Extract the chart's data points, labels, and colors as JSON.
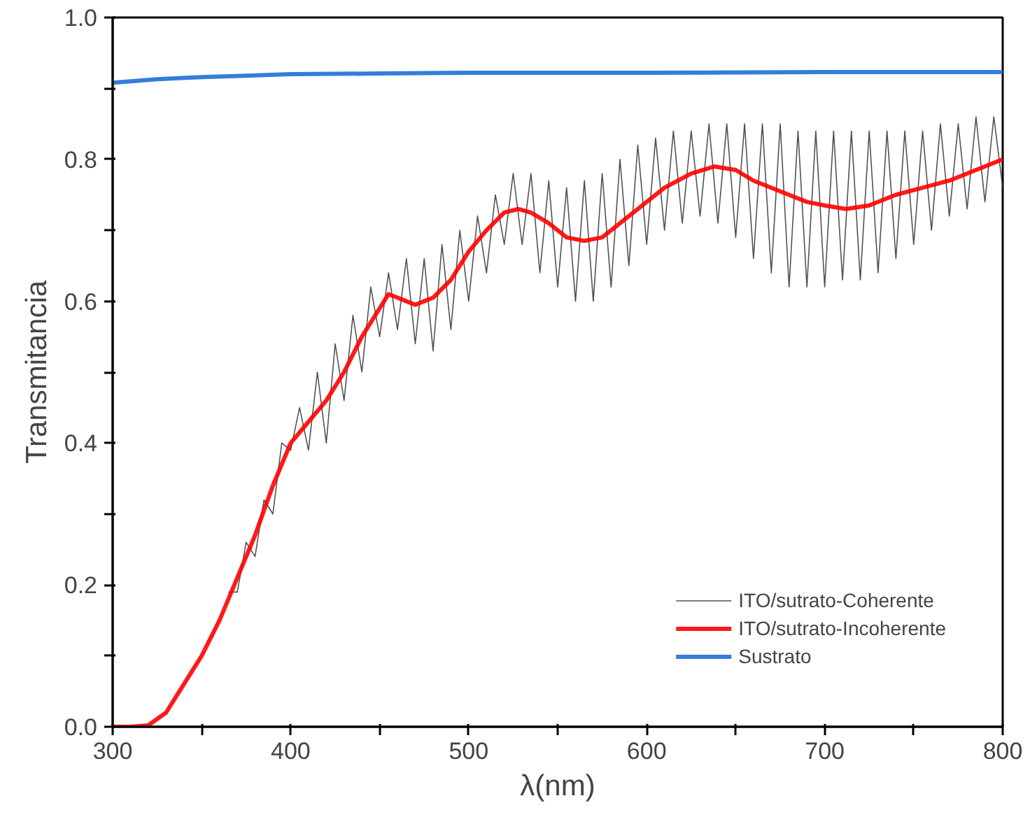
{
  "chart_data": {
    "type": "line",
    "xlabel": "λ(nm)",
    "ylabel": "Transmitancia",
    "xlim": [
      300,
      800
    ],
    "ylim": [
      0,
      1.0
    ],
    "xticks": [
      300,
      {
        "value": 350,
        "label": null
      },
      400,
      {
        "value": 450,
        "label": null
      },
      500,
      {
        "value": 550,
        "label": null
      },
      600,
      {
        "value": 650,
        "label": null
      },
      700,
      {
        "value": 750,
        "label": null
      },
      800
    ],
    "yticks": [
      "0.0",
      {
        "value": 0.1,
        "label": null
      },
      0.2,
      {
        "value": 0.3,
        "label": null
      },
      0.4,
      {
        "value": 0.5,
        "label": null
      },
      0.6,
      {
        "value": 0.7,
        "label": null
      },
      0.8,
      {
        "value": 0.9,
        "label": null
      },
      "1.0"
    ],
    "grid": false,
    "legend": "bottom right",
    "line_style": "solid",
    "marker": "none",
    "series": [
      {
        "name": "ITO/sutrato-Coherente",
        "color": "#404040",
        "x": [
          365,
          370,
          375,
          380,
          385,
          390,
          395,
          400,
          405,
          410,
          415,
          420,
          425,
          430,
          435,
          440,
          445,
          450,
          455,
          460,
          465,
          470,
          475,
          480,
          485,
          490,
          495,
          500,
          505,
          510,
          515,
          520,
          525,
          530,
          535,
          540,
          545,
          550,
          555,
          560,
          565,
          570,
          575,
          580,
          585,
          590,
          595,
          600,
          605,
          610,
          615,
          620,
          625,
          630,
          635,
          640,
          645,
          650,
          655,
          660,
          665,
          670,
          675,
          680,
          685,
          690,
          695,
          700,
          705,
          710,
          715,
          720,
          725,
          730,
          735,
          740,
          745,
          750,
          755,
          760,
          765,
          770,
          775,
          780,
          785,
          790,
          795,
          800
        ],
        "values": [
          0.19,
          0.19,
          0.26,
          0.24,
          0.32,
          0.3,
          0.4,
          0.39,
          0.45,
          0.39,
          0.5,
          0.4,
          0.54,
          0.46,
          0.58,
          0.5,
          0.62,
          0.55,
          0.64,
          0.56,
          0.66,
          0.54,
          0.66,
          0.53,
          0.68,
          0.56,
          0.7,
          0.6,
          0.72,
          0.64,
          0.75,
          0.68,
          0.78,
          0.68,
          0.78,
          0.64,
          0.77,
          0.62,
          0.76,
          0.6,
          0.77,
          0.6,
          0.78,
          0.62,
          0.8,
          0.65,
          0.82,
          0.68,
          0.83,
          0.7,
          0.84,
          0.71,
          0.84,
          0.72,
          0.85,
          0.71,
          0.85,
          0.69,
          0.85,
          0.66,
          0.85,
          0.64,
          0.85,
          0.62,
          0.84,
          0.62,
          0.84,
          0.62,
          0.84,
          0.63,
          0.84,
          0.63,
          0.84,
          0.64,
          0.84,
          0.66,
          0.84,
          0.68,
          0.84,
          0.7,
          0.85,
          0.72,
          0.85,
          0.73,
          0.86,
          0.74,
          0.86,
          0.76
        ]
      },
      {
        "name": "ITO/sutrato-Incoherente",
        "color": "#ff0000",
        "x": [
          300,
          310,
          320,
          330,
          340,
          350,
          360,
          370,
          380,
          390,
          400,
          410,
          420,
          430,
          440,
          450,
          455,
          460,
          465,
          470,
          475,
          480,
          490,
          500,
          510,
          520,
          528,
          535,
          545,
          555,
          565,
          575,
          585,
          600,
          610,
          625,
          638,
          650,
          660,
          675,
          690,
          700,
          712,
          725,
          740,
          755,
          770,
          785,
          800
        ],
        "values": [
          0,
          0,
          0.002,
          0.02,
          0.06,
          0.1,
          0.15,
          0.21,
          0.27,
          0.34,
          0.4,
          0.43,
          0.46,
          0.5,
          0.55,
          0.59,
          0.61,
          0.605,
          0.6,
          0.595,
          0.6,
          0.605,
          0.63,
          0.67,
          0.7,
          0.725,
          0.73,
          0.725,
          0.71,
          0.69,
          0.685,
          0.69,
          0.71,
          0.74,
          0.76,
          0.78,
          0.79,
          0.785,
          0.77,
          0.755,
          0.74,
          0.735,
          0.73,
          0.735,
          0.75,
          0.76,
          0.77,
          0.785,
          0.8
        ]
      },
      {
        "name": "Sustrato",
        "color": "#1f6fd6",
        "x": [
          300,
          325,
          350,
          375,
          400,
          450,
          500,
          600,
          700,
          800
        ],
        "values": [
          0.908,
          0.913,
          0.916,
          0.918,
          0.92,
          0.921,
          0.922,
          0.922,
          0.923,
          0.923
        ]
      }
    ]
  }
}
